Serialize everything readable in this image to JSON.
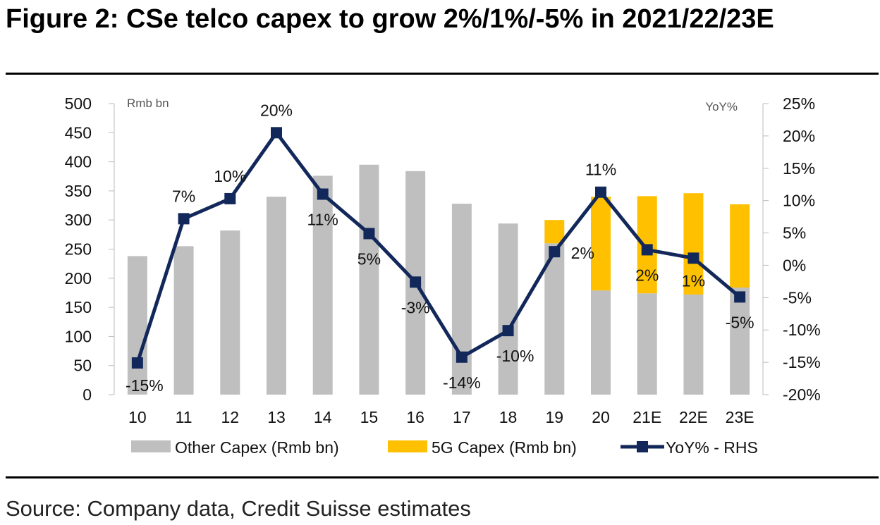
{
  "title": "Figure 2: CSe telco capex to grow 2%/1%/-5% in 2021/22/23E",
  "source": "Source: Company data, Credit Suisse estimates",
  "chart_data": {
    "type": "bar",
    "stacked": true,
    "categories": [
      "10",
      "11",
      "12",
      "13",
      "14",
      "15",
      "16",
      "17",
      "18",
      "19",
      "20",
      "21E",
      "22E",
      "23E"
    ],
    "left_axis": {
      "unit_label": "Rmb bn",
      "ylim": [
        0,
        500
      ],
      "ticks": [
        0,
        50,
        100,
        150,
        200,
        250,
        300,
        350,
        400,
        450,
        500
      ]
    },
    "right_axis": {
      "unit_label": "YoY%",
      "ylim": [
        -20,
        25
      ],
      "ticks": [
        "-20%",
        "-15%",
        "-10%",
        "-5%",
        "0%",
        "5%",
        "10%",
        "15%",
        "20%",
        "25%"
      ]
    },
    "series": [
      {
        "name": "Other Capex (Rmb bn)",
        "type": "bar",
        "color": "#BFBFBF",
        "values": [
          238,
          255,
          282,
          340,
          376,
          395,
          384,
          328,
          294,
          260,
          179,
          174,
          172,
          184
        ]
      },
      {
        "name": "5G Capex (Rmb bn)",
        "type": "bar",
        "color": "#FFC000",
        "values": [
          0,
          0,
          0,
          0,
          0,
          0,
          0,
          0,
          0,
          40,
          161,
          167,
          174,
          143
        ]
      },
      {
        "name": "YoY% - RHS",
        "type": "line",
        "axis": "right",
        "color": "#13285A",
        "values": [
          -15.1,
          7.2,
          10.3,
          20.5,
          11.0,
          4.9,
          -2.6,
          -14.2,
          -10.1,
          2.1,
          11.3,
          2.4,
          1.1,
          -4.9
        ],
        "labels": [
          "-15%",
          "7%",
          "10%",
          "20%",
          "11%",
          "5%",
          "-3%",
          "-14%",
          "-10%",
          "2%",
          "11%",
          "2%",
          "1%",
          "-5%"
        ]
      }
    ],
    "grid": false,
    "legend": "bottom"
  }
}
